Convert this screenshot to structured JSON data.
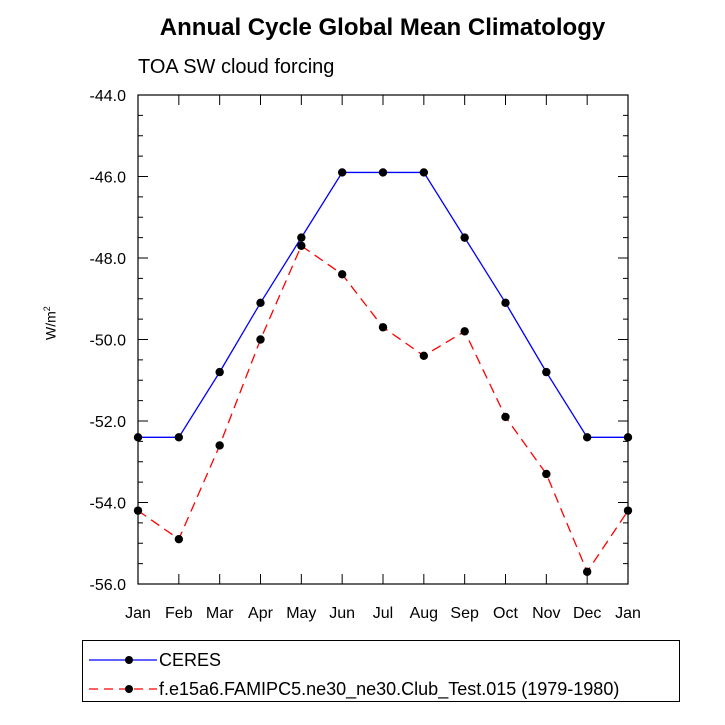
{
  "title": "Annual Cycle Global Mean Climatology",
  "subtitle": "TOA SW cloud forcing",
  "chart_data": {
    "type": "line",
    "title": "Annual Cycle Global Mean Climatology",
    "subtitle": "TOA SW cloud forcing",
    "ylabel_base": "W/m",
    "ylabel_sup": "2",
    "xlabel": "",
    "ylim": [
      -56.0,
      -44.0
    ],
    "yticks": [
      -44.0,
      -46.0,
      -48.0,
      -50.0,
      -52.0,
      -54.0,
      -56.0
    ],
    "ytick_labels": [
      "-44.0",
      "-46.0",
      "-48.0",
      "-50.0",
      "-52.0",
      "-54.0",
      "-56.0"
    ],
    "categories": [
      "Jan",
      "Feb",
      "Mar",
      "Apr",
      "May",
      "Jun",
      "Jul",
      "Aug",
      "Sep",
      "Oct",
      "Nov",
      "Dec",
      "Jan"
    ],
    "series": [
      {
        "name": "CERES",
        "color": "#0000ff",
        "style": "solid",
        "values": [
          -52.4,
          -52.4,
          -50.8,
          -49.1,
          -47.5,
          -45.9,
          -45.9,
          -45.9,
          -47.5,
          -49.1,
          -50.8,
          -52.4,
          -52.4
        ]
      },
      {
        "name": "f.e15a6.FAMIPC5.ne30_ne30.Club_Test.015 (1979-1980)",
        "color": "#ff0000",
        "style": "dashed",
        "values": [
          -54.2,
          -54.9,
          -52.6,
          -50.0,
          -47.7,
          -48.4,
          -49.7,
          -50.4,
          -49.8,
          -51.9,
          -53.3,
          -55.7,
          -54.2
        ]
      }
    ]
  }
}
